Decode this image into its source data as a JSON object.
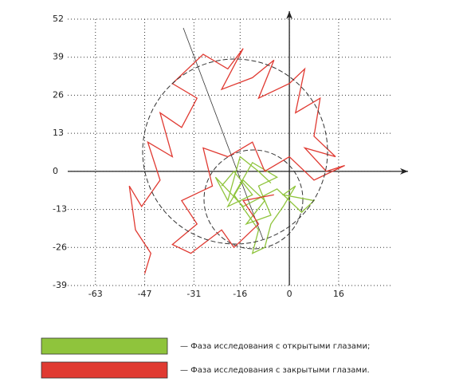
{
  "chart_data": {
    "type": "line",
    "xlim": [
      -72,
      37
    ],
    "ylim": [
      -39,
      52
    ],
    "xticks": [
      -63,
      -47,
      -31,
      -16,
      0,
      16
    ],
    "yticks": [
      52,
      39,
      26,
      13,
      0,
      -13,
      -26,
      -39
    ],
    "grid": true,
    "series": [
      {
        "name": "— Фаза исследования с открытыми глазами;",
        "color": "#8fc43c",
        "x": [
          -22,
          -18,
          -12,
          -20,
          -15,
          -8,
          -14,
          -6,
          -10,
          -4,
          -12,
          -18,
          -10,
          -12,
          -8,
          -6,
          -2,
          2,
          -2,
          8,
          4,
          -4,
          -15,
          -24,
          -20,
          -16,
          -10,
          -6
        ],
        "values": [
          -5,
          0,
          -8,
          -12,
          -3,
          -10,
          -18,
          -15,
          -5,
          -2,
          3,
          -8,
          -20,
          -28,
          -26,
          -18,
          -12,
          -5,
          -8,
          -10,
          -14,
          -6,
          -12,
          -2,
          -10,
          5,
          0,
          -4
        ]
      },
      {
        "name": "— Фаза исследования с закрытыми глазами.",
        "color": "#e03a32",
        "x": [
          -47,
          -45,
          -50,
          -52,
          -48,
          -42,
          -46,
          -38,
          -42,
          -35,
          -30,
          -38,
          -28,
          -20,
          -15,
          -22,
          -12,
          -5,
          -10,
          0,
          5,
          2,
          10,
          8,
          15,
          5,
          12,
          18,
          8,
          0,
          -8,
          -12,
          -20,
          -28,
          -25,
          -35,
          -30,
          -38,
          -32,
          -22,
          -18,
          -10,
          -15,
          -5
        ],
        "values": [
          -35,
          -28,
          -20,
          -5,
          -12,
          -3,
          10,
          5,
          20,
          15,
          25,
          30,
          40,
          35,
          42,
          28,
          32,
          38,
          25,
          30,
          35,
          20,
          25,
          12,
          5,
          8,
          0,
          2,
          -3,
          5,
          0,
          10,
          5,
          8,
          -5,
          -10,
          -18,
          -25,
          -28,
          -20,
          -26,
          -18,
          -10,
          -8
        ]
      }
    ]
  }
}
